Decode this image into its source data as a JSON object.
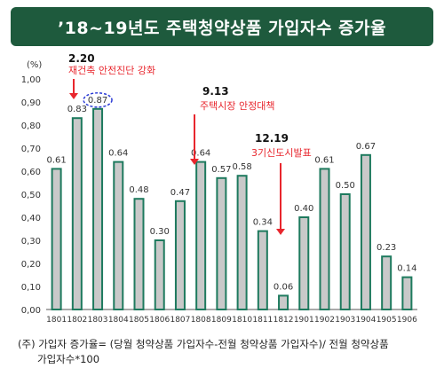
{
  "header": {
    "title": "’18~19년도 주택청약상품 가입자수 증가율"
  },
  "chart_data": {
    "type": "bar",
    "unit_label": "(%)",
    "categories": [
      "1801",
      "1802",
      "1803",
      "1804",
      "1805",
      "1806",
      "1807",
      "1808",
      "1809",
      "1810",
      "1811",
      "1812",
      "1901",
      "1902",
      "1903",
      "1904",
      "1905",
      "1906"
    ],
    "values": [
      0.61,
      0.83,
      0.87,
      0.64,
      0.48,
      0.3,
      0.47,
      0.64,
      0.57,
      0.58,
      0.34,
      0.06,
      0.4,
      0.61,
      0.5,
      0.67,
      0.23,
      0.14
    ],
    "value_labels": [
      "0.61",
      "0.83",
      "0.87",
      "0.64",
      "0.48",
      "0.30",
      "0.47",
      "0.64",
      "0.57",
      "0.58",
      "0.34",
      "0.06",
      "0.40",
      "0.61",
      "0.50",
      "0.67",
      "0.23",
      "0.14"
    ],
    "ylim": [
      0,
      1.0
    ],
    "yticks": [
      "0,00",
      "0,10",
      "0,20",
      "0,30",
      "0,40",
      "0,50",
      "0,60",
      "0,70",
      "0,80",
      "0,90",
      "1,00"
    ],
    "highlight_index": 2,
    "colors": {
      "bar_fill": "#c9c9c9",
      "bar_stroke": "#1e7a5e",
      "annotation": "#e8262d",
      "highlight": "#2c3cd6"
    },
    "annotations": [
      {
        "date": "2.20",
        "text": "재건축 안전진단 강화",
        "category_index": 1
      },
      {
        "date": "9.13",
        "text": "주택시장 안정대책",
        "category_index": 8
      },
      {
        "date": "12.19",
        "text": "3기신도시발표",
        "category_index": 11
      }
    ]
  },
  "note": {
    "line1": "(주) 가입자 증가율= (당월 청약상품 가입자수-전월 청약상품 가입자수)/ 전월 청약상품",
    "line2": "가입자수*100"
  }
}
